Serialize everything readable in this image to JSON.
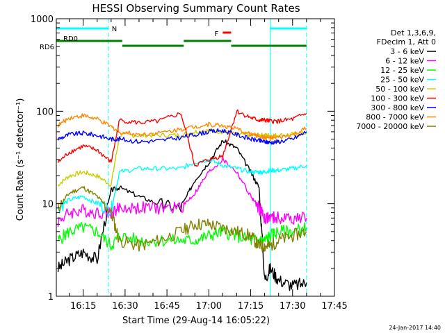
{
  "chart_data": {
    "type": "line",
    "title": "HESSI Observing Summary Count Rates",
    "xlabel": "Start Time (29-Aug-14 16:05:22)",
    "ylabel": "Count Rate (s⁻¹ detector⁻¹)",
    "y_scale": "log",
    "ylim": [
      1,
      1000
    ],
    "xlim": [
      "16:05:22",
      "17:45"
    ],
    "x_ticks": [
      "16:15",
      "16:30",
      "16:45",
      "17:00",
      "17:15",
      "17:30",
      "17:45"
    ],
    "y_ticks": [
      "1",
      "10",
      "100",
      "1000"
    ],
    "legend": {
      "placement": "right",
      "header": [
        "Det 1,3,6,9,",
        "FDecim 1, Att 0"
      ]
    },
    "series": [
      {
        "name": "3 - 6 keV",
        "color": "#000000",
        "x": [
          "16:06",
          "16:10",
          "16:15",
          "16:20",
          "16:25",
          "16:28",
          "16:35",
          "16:42",
          "16:50",
          "16:55",
          "17:00",
          "17:05",
          "17:10",
          "17:15",
          "17:18",
          "17:20",
          "17:22",
          "17:25",
          "17:30",
          "17:35"
        ],
        "y": [
          2,
          2.5,
          3,
          2.5,
          14,
          15,
          12,
          10,
          9,
          18,
          28,
          48,
          40,
          22,
          15,
          1.5,
          2,
          1.5,
          1.3,
          1.4
        ]
      },
      {
        "name": "6 - 12 keV",
        "color": "#ff00ff",
        "x": [
          "16:06",
          "16:10",
          "16:15",
          "16:20",
          "16:25",
          "16:28",
          "16:35",
          "16:42",
          "16:50",
          "16:55",
          "17:00",
          "17:05",
          "17:10",
          "17:15",
          "17:18",
          "17:20",
          "17:22",
          "17:25",
          "17:30",
          "17:35"
        ],
        "y": [
          6.5,
          8,
          8.5,
          8,
          8,
          9,
          9,
          9,
          9,
          13,
          22,
          30,
          22,
          12,
          9,
          7,
          7,
          7,
          7,
          7
        ]
      },
      {
        "name": "12 - 25 keV",
        "color": "#00ff00",
        "x": [
          "16:06",
          "16:10",
          "16:15",
          "16:20",
          "16:25",
          "16:28",
          "16:35",
          "16:42",
          "16:50",
          "16:55",
          "17:00",
          "17:05",
          "17:10",
          "17:15",
          "17:18",
          "17:20",
          "17:22",
          "17:25",
          "17:30",
          "17:35"
        ],
        "y": [
          4,
          5,
          5.5,
          5,
          3.5,
          4.5,
          4,
          4,
          4,
          4,
          4.5,
          5,
          4.5,
          4,
          4,
          4,
          4.5,
          5,
          5,
          5.5
        ]
      },
      {
        "name": "25 - 50 keV",
        "color": "#00ffff",
        "x": [
          "16:06",
          "16:10",
          "16:15",
          "16:20",
          "16:25",
          "16:28",
          "16:35",
          "16:42",
          "16:50",
          "16:55",
          "17:00",
          "17:05",
          "17:10",
          "17:15",
          "17:18",
          "17:20",
          "17:22",
          "17:25",
          "17:30",
          "17:35"
        ],
        "y": [
          9,
          11,
          12,
          10,
          8.5,
          22,
          24,
          24,
          24,
          28,
          30,
          26,
          24,
          22,
          22,
          22,
          23,
          23,
          24,
          26
        ]
      },
      {
        "name": "50 - 100 keV",
        "color": "#cccc00",
        "x": [
          "16:06",
          "16:10",
          "16:15",
          "16:20",
          "16:25",
          "16:28",
          "16:35",
          "16:42",
          "16:50",
          "16:55",
          "17:00",
          "17:05",
          "17:10",
          "17:15",
          "17:18",
          "17:20",
          "17:22",
          "17:25",
          "17:30",
          "17:35"
        ],
        "y": [
          16,
          20,
          22,
          20,
          16,
          55,
          55,
          55,
          55,
          60,
          62,
          60,
          56,
          56,
          55,
          55,
          55,
          55,
          56,
          58
        ]
      },
      {
        "name": "100 - 300 keV",
        "color": "#ff0000",
        "x": [
          "16:06",
          "16:10",
          "16:15",
          "16:20",
          "16:25",
          "16:28",
          "16:35",
          "16:42",
          "16:50",
          "16:55",
          "17:00",
          "17:05",
          "17:10",
          "17:15",
          "17:18",
          "17:20",
          "17:22",
          "17:25",
          "17:30",
          "17:35"
        ],
        "y": [
          28,
          36,
          42,
          38,
          28,
          80,
          75,
          78,
          95,
          26,
          30,
          33,
          100,
          85,
          80,
          80,
          78,
          78,
          82,
          95
        ]
      },
      {
        "name": "300 - 800 keV",
        "color": "#0000ff",
        "x": [
          "16:06",
          "16:10",
          "16:15",
          "16:20",
          "16:25",
          "16:28",
          "16:35",
          "16:42",
          "16:50",
          "16:55",
          "17:00",
          "17:05",
          "17:10",
          "17:15",
          "17:18",
          "17:20",
          "17:22",
          "17:25",
          "17:30",
          "17:35"
        ],
        "y": [
          50,
          56,
          58,
          55,
          50,
          50,
          47,
          48,
          52,
          56,
          60,
          62,
          56,
          50,
          48,
          47,
          46,
          47,
          50,
          60
        ]
      },
      {
        "name": "800 - 7000 keV",
        "color": "#ff8800",
        "x": [
          "16:06",
          "16:10",
          "16:15",
          "16:20",
          "16:25",
          "16:28",
          "16:35",
          "16:42",
          "16:50",
          "16:55",
          "17:00",
          "17:05",
          "17:10",
          "17:15",
          "17:18",
          "17:20",
          "17:22",
          "17:25",
          "17:30",
          "17:35"
        ],
        "y": [
          70,
          85,
          90,
          82,
          68,
          60,
          56,
          58,
          64,
          68,
          72,
          70,
          64,
          56,
          54,
          52,
          51,
          52,
          55,
          65
        ]
      },
      {
        "name": "7000 - 20000 keV",
        "color": "#808000",
        "x": [
          "16:06",
          "16:10",
          "16:15",
          "16:20",
          "16:25",
          "16:28",
          "16:35",
          "16:42",
          "16:50",
          "16:55",
          "17:00",
          "17:05",
          "17:10",
          "17:15",
          "17:18",
          "17:20",
          "17:22",
          "17:25",
          "17:30",
          "17:35"
        ],
        "y": [
          9,
          13,
          15,
          12,
          8,
          4,
          3.5,
          4,
          5,
          6,
          6,
          5.5,
          5,
          4.5,
          3.5,
          3.5,
          3.5,
          4,
          4.5,
          5
        ]
      }
    ],
    "flags": [
      {
        "label": "N",
        "color": "#00ffff",
        "segments": [
          [
            "16:05:22",
            "16:24"
          ],
          [
            "17:22",
            "17:35"
          ]
        ]
      },
      {
        "label": "RD0",
        "color": "#008000",
        "segments": [
          [
            "16:05:22",
            "16:29"
          ],
          [
            "16:29",
            "16:51"
          ],
          [
            "16:51",
            "17:08"
          ],
          [
            "17:08",
            "17:35"
          ]
        ]
      },
      {
        "label": "F",
        "color": "#ff0000",
        "segments": [
          [
            "17:05",
            "17:08"
          ]
        ]
      },
      {
        "label": "RD6",
        "color": "#008000",
        "segments": []
      }
    ],
    "vertical_lines": [
      {
        "time": "16:05:22",
        "color": "#00ffff",
        "style": "solid"
      },
      {
        "time": "16:24",
        "color": "#00ffff",
        "style": "dashed"
      },
      {
        "time": "17:22",
        "color": "#00ffff",
        "style": "solid"
      },
      {
        "time": "17:35",
        "color": "#00ffff",
        "style": "dashed"
      }
    ],
    "grid": false
  },
  "footer": {
    "timestamp": "24-Jan-2017 14:40"
  }
}
